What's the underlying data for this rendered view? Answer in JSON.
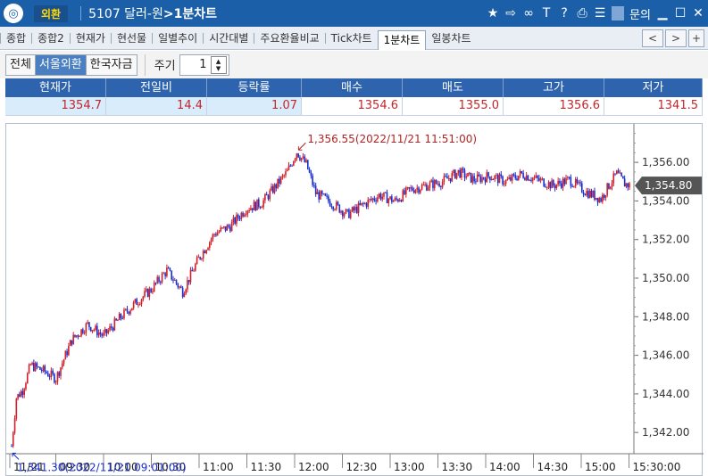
{
  "titlebar": {
    "app_icon": "globe-logo",
    "badge": "외환",
    "screen_code": "5107 달러-원",
    "screen_arrow": ">",
    "screen_name": "1분차트",
    "icons": [
      "star-icon",
      "export-icon",
      "link-icon",
      "font-icon",
      "help-icon",
      "print-icon",
      "list-icon"
    ],
    "inquiry_label": "문의",
    "window_buttons": [
      "minimize-icon",
      "maximize-icon",
      "close-icon"
    ]
  },
  "tabs": [
    {
      "label": "종합",
      "active": false
    },
    {
      "label": "종합2",
      "active": false
    },
    {
      "label": "현재가",
      "active": false
    },
    {
      "label": "현선물",
      "active": false
    },
    {
      "label": "일별추이",
      "active": false
    },
    {
      "label": "시간대별",
      "active": false
    },
    {
      "label": "주요환율비교",
      "active": false
    },
    {
      "label": "Tick차트",
      "active": false
    },
    {
      "label": "1분차트",
      "active": true
    },
    {
      "label": "일봉차트",
      "active": false
    }
  ],
  "tab_nav": {
    "prev": "<",
    "next": ">",
    "add": "+"
  },
  "filters": {
    "segments": [
      {
        "label": "전체",
        "active": false
      },
      {
        "label": "서울외환",
        "active": true
      },
      {
        "label": "한국자금",
        "active": false
      }
    ],
    "period_label": "주기",
    "period_value": "1"
  },
  "quote": {
    "headers": [
      "현재가",
      "전일비",
      "등락률",
      "매수",
      "매도",
      "고가",
      "저가"
    ],
    "values": [
      "1354.7",
      "14.4",
      "1.07",
      "1354.6",
      "1355.0",
      "1356.6",
      "1341.5"
    ]
  },
  "chart_data": {
    "type": "candlestick",
    "x_labels": [
      "11/21",
      "09:30",
      "10:00",
      "10:30",
      "11:00",
      "11:30",
      "12:00",
      "12:30",
      "13:00",
      "13:30",
      "14:00",
      "14:30",
      "15:00",
      "15:30:00"
    ],
    "y_ticks": [
      "1,356.00",
      "1,354.00",
      "1,352.00",
      "1,350.00",
      "1,348.00",
      "1,346.00",
      "1,344.00",
      "1,342.00"
    ],
    "ylim": [
      1340.9,
      1357.9
    ],
    "last_price_label": "1,354.80",
    "last_price": 1354.8,
    "high_annotation": "1,356.55(2022/11/21 11:51:00)",
    "low_annotation": "1,341.30(2022/11/21 09:01:00)",
    "series_path": [
      [
        0,
        1341.3
      ],
      [
        3,
        1343.8
      ],
      [
        7,
        1344.2
      ],
      [
        12,
        1345.5
      ],
      [
        20,
        1345.2
      ],
      [
        28,
        1344.8
      ],
      [
        38,
        1346.8
      ],
      [
        48,
        1347.6
      ],
      [
        58,
        1347.0
      ],
      [
        68,
        1347.9
      ],
      [
        78,
        1348.7
      ],
      [
        88,
        1349.4
      ],
      [
        98,
        1350.4
      ],
      [
        108,
        1349.3
      ],
      [
        118,
        1351.0
      ],
      [
        128,
        1352.3
      ],
      [
        138,
        1352.7
      ],
      [
        148,
        1353.6
      ],
      [
        158,
        1353.9
      ],
      [
        168,
        1354.9
      ],
      [
        174,
        1355.5
      ],
      [
        180,
        1356.55
      ],
      [
        186,
        1355.9
      ],
      [
        192,
        1354.4
      ],
      [
        202,
        1353.9
      ],
      [
        212,
        1353.3
      ],
      [
        222,
        1353.8
      ],
      [
        232,
        1354.3
      ],
      [
        242,
        1354.0
      ],
      [
        252,
        1354.6
      ],
      [
        262,
        1354.8
      ],
      [
        272,
        1355.0
      ],
      [
        282,
        1355.5
      ],
      [
        292,
        1355.1
      ],
      [
        302,
        1355.3
      ],
      [
        312,
        1355.0
      ],
      [
        322,
        1355.4
      ],
      [
        332,
        1355.1
      ],
      [
        342,
        1354.8
      ],
      [
        352,
        1355.1
      ],
      [
        362,
        1354.5
      ],
      [
        372,
        1354.1
      ],
      [
        377,
        1354.8
      ],
      [
        382,
        1355.4
      ],
      [
        387,
        1354.9
      ],
      [
        390,
        1354.8
      ]
    ],
    "colors": {
      "up": "#d0202a",
      "down": "#1a2fd0",
      "annotation_high": "#b22222",
      "annotation_low": "#1a2fd0",
      "price_tag": "#555555"
    }
  }
}
